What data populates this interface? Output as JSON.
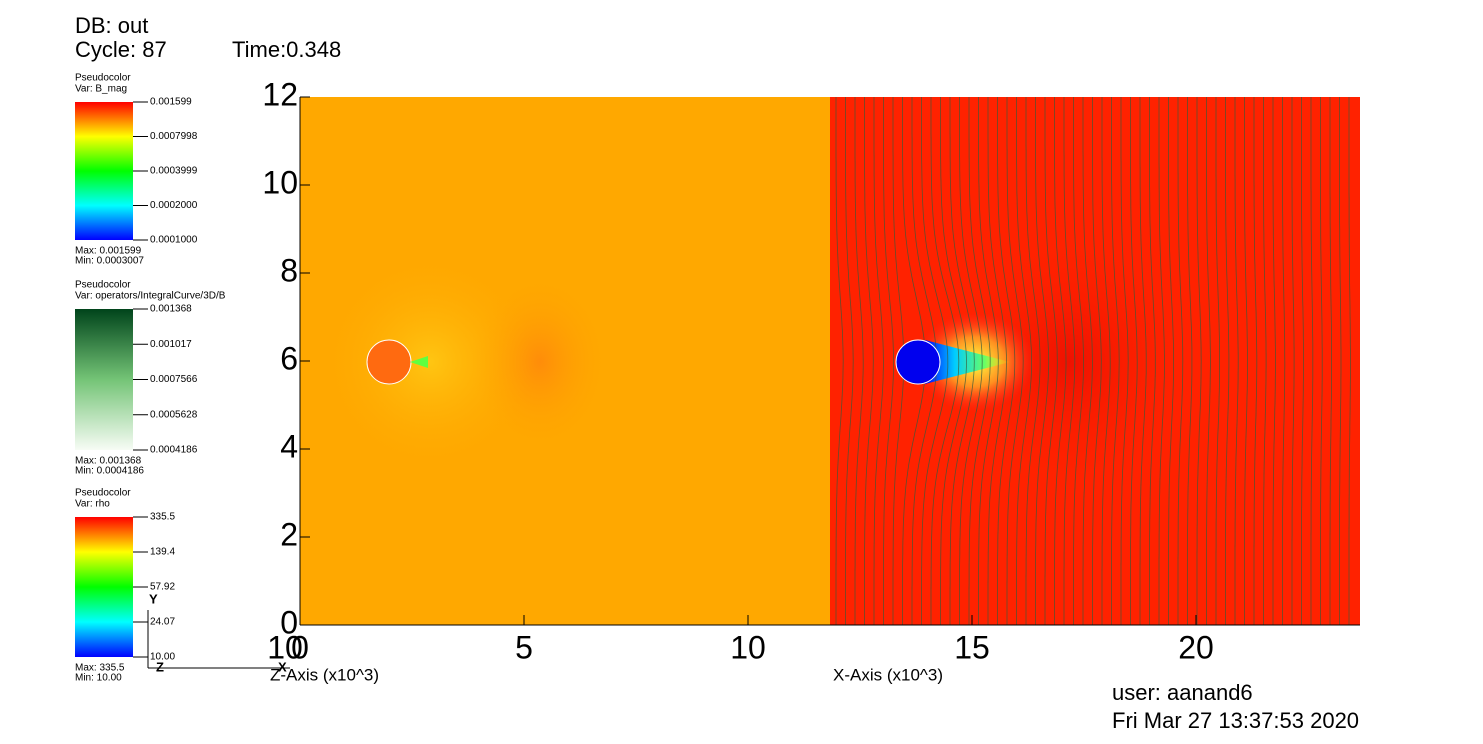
{
  "header": {
    "db": "DB: out",
    "cycle": "Cycle: 87",
    "time": "Time:0.348"
  },
  "legends": [
    {
      "plot": "Pseudocolor",
      "var": "Var: B_mag",
      "ticks": [
        "0.001599",
        "0.0007998",
        "0.0003999",
        "0.0002000",
        "0.0001000"
      ],
      "max": "Max: 0.001599",
      "min": "Min: 0.0003007"
    },
    {
      "plot": "Pseudocolor",
      "var": "Var: operators/IntegralCurve/3D/B",
      "ticks": [
        "0.001368",
        "0.001017",
        "0.0007566",
        "0.0005628",
        "0.0004186"
      ],
      "max": "Max: 0.001368",
      "min": "Min: 0.0004186"
    },
    {
      "plot": "Pseudocolor",
      "var": "Var: rho",
      "ticks": [
        "335.5",
        "139.4",
        "57.92",
        "24.07",
        "10.00"
      ],
      "max": "Max: 335.5",
      "min": "Min: 10.00"
    }
  ],
  "plot": {
    "y_ticks": [
      "0",
      "2",
      "4",
      "6",
      "8",
      "10",
      "12"
    ],
    "x_ticks": [
      "0",
      "5",
      "10",
      "15",
      "20"
    ],
    "x_overlap_tick": "10",
    "z_axis_title": "Z-Axis (x10^3)",
    "x_axis_title": "X-Axis (x10^3)",
    "triad": {
      "y": "Y",
      "x": "X",
      "z": "Z"
    }
  },
  "footer": {
    "user": "user: aanand6",
    "date": "Fri Mar 27 13:37:53 2020"
  }
}
